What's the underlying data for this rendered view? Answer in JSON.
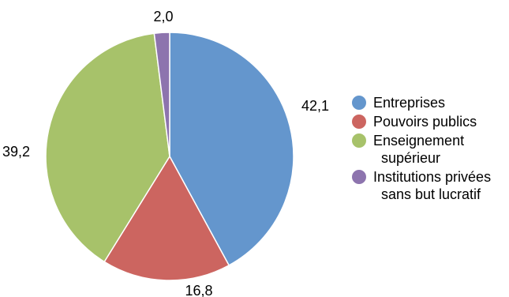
{
  "chart_data": {
    "type": "pie",
    "categories": [
      "Entreprises",
      "Pouvoirs publics",
      "Enseignement supérieur",
      "Institutions privées sans but lucratif"
    ],
    "values": [
      42.1,
      16.8,
      39.2,
      2.0
    ],
    "data_labels": [
      "42,1",
      "16,8",
      "39,2",
      "2,0"
    ],
    "colors": [
      "#6496CD",
      "#CC6560",
      "#A7C26A",
      "#8D74AE"
    ],
    "start_angle": "12 o'clock",
    "direction": "clockwise",
    "legend_placement": "right",
    "legend": [
      {
        "line1": "Entreprises",
        "line2": ""
      },
      {
        "line1": "Pouvoirs publics",
        "line2": ""
      },
      {
        "line1": "Enseignement",
        "line2": "supérieur"
      },
      {
        "line1": "Institutions privées",
        "line2": "sans but lucratif"
      }
    ]
  }
}
